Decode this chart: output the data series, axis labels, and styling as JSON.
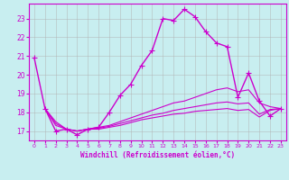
{
  "xlabel": "Windchill (Refroidissement éolien,°C)",
  "background_color": "#c8eef0",
  "grid_color": "#b0b0b0",
  "line_color": "#cc00cc",
  "xlim": [
    -0.5,
    23.5
  ],
  "ylim": [
    16.5,
    23.8
  ],
  "xticks": [
    0,
    1,
    2,
    3,
    4,
    5,
    6,
    7,
    8,
    9,
    10,
    11,
    12,
    13,
    14,
    15,
    16,
    17,
    18,
    19,
    20,
    21,
    22,
    23
  ],
  "yticks": [
    17,
    18,
    19,
    20,
    21,
    22,
    23
  ],
  "curve1_x": [
    0,
    1,
    2,
    3,
    4,
    5,
    6,
    7,
    8,
    9,
    10,
    11,
    12,
    13,
    14,
    15,
    16,
    17,
    18,
    19,
    20,
    21,
    22,
    23
  ],
  "curve1_y": [
    20.9,
    18.2,
    17.0,
    17.1,
    16.8,
    17.1,
    17.2,
    18.0,
    18.9,
    19.5,
    20.5,
    21.3,
    23.0,
    22.9,
    23.5,
    23.1,
    22.3,
    21.7,
    21.5,
    18.8,
    20.1,
    18.6,
    17.8,
    18.2
  ],
  "curve2_x": [
    1,
    2,
    3,
    4,
    5,
    6,
    7,
    8,
    9,
    10,
    11,
    12,
    13,
    14,
    15,
    16,
    17,
    18,
    19,
    20,
    21,
    22,
    23
  ],
  "curve2_y": [
    18.2,
    17.5,
    17.1,
    17.0,
    17.1,
    17.2,
    17.3,
    17.5,
    17.7,
    17.9,
    18.1,
    18.3,
    18.5,
    18.6,
    18.8,
    19.0,
    19.2,
    19.3,
    19.1,
    19.2,
    18.5,
    18.3,
    18.2
  ],
  "curve3_x": [
    1,
    2,
    3,
    4,
    5,
    6,
    7,
    8,
    9,
    10,
    11,
    12,
    13,
    14,
    15,
    16,
    17,
    18,
    19,
    20,
    21,
    22,
    23
  ],
  "curve3_y": [
    18.2,
    17.4,
    17.1,
    17.0,
    17.1,
    17.15,
    17.25,
    17.4,
    17.55,
    17.7,
    17.85,
    17.95,
    18.1,
    18.2,
    18.3,
    18.4,
    18.5,
    18.55,
    18.45,
    18.5,
    17.9,
    18.15,
    18.2
  ],
  "curve4_x": [
    1,
    2,
    3,
    4,
    5,
    6,
    7,
    8,
    9,
    10,
    11,
    12,
    13,
    14,
    15,
    16,
    17,
    18,
    19,
    20,
    21,
    22,
    23
  ],
  "curve4_y": [
    18.2,
    17.3,
    17.1,
    17.0,
    17.1,
    17.1,
    17.2,
    17.3,
    17.45,
    17.6,
    17.7,
    17.8,
    17.9,
    17.95,
    18.05,
    18.1,
    18.15,
    18.2,
    18.1,
    18.15,
    17.75,
    18.1,
    18.2
  ]
}
